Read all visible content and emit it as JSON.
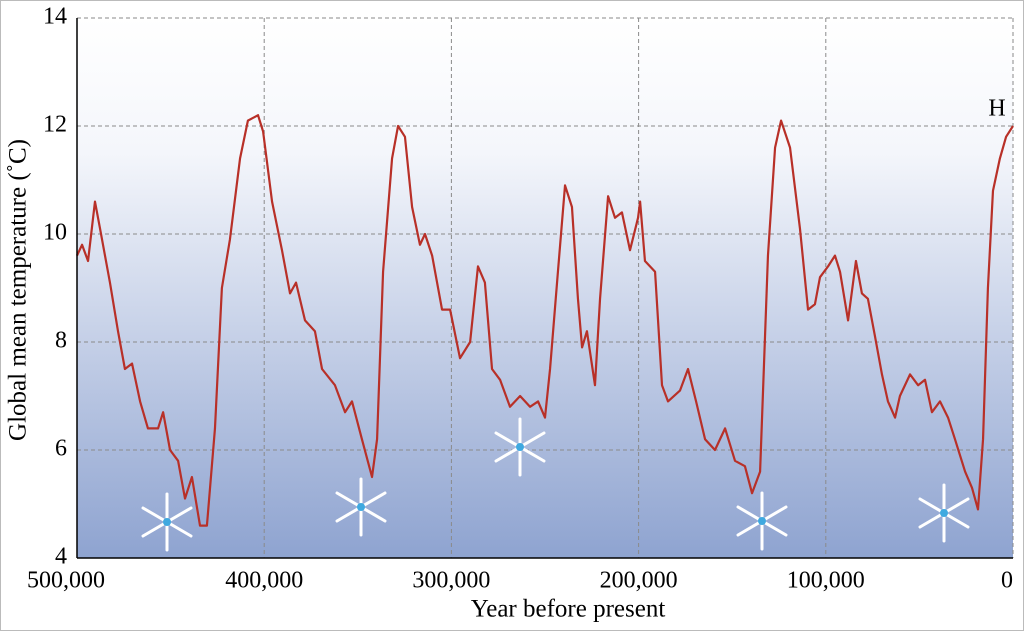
{
  "chart_data": {
    "type": "line",
    "x_label": "Year before present",
    "y_label": "Global mean temperature (˚C)",
    "annotation": "H",
    "color": "#b83028",
    "grid": true,
    "xlim": [
      500000,
      0
    ],
    "ylim": [
      4,
      14
    ],
    "xticks": [
      {
        "value": 500000,
        "label": "500,000"
      },
      {
        "value": 400000,
        "label": "400,000"
      },
      {
        "value": 300000,
        "label": "300,000"
      },
      {
        "value": 200000,
        "label": "200,000"
      },
      {
        "value": 100000,
        "label": "100,000"
      },
      0
    ],
    "yticks": [
      4,
      6,
      8,
      10,
      12,
      14
    ],
    "x": [
      500000,
      497300,
      494100,
      490400,
      487700,
      482400,
      478100,
      474400,
      470600,
      466300,
      462100,
      456700,
      454000,
      450300,
      446000,
      442300,
      438600,
      434300,
      430600,
      426300,
      422600,
      418300,
      412900,
      408700,
      403300,
      400600,
      395800,
      390500,
      386200,
      383000,
      378200,
      372900,
      369100,
      362200,
      356800,
      353100,
      347800,
      342400,
      339700,
      336500,
      331700,
      328500,
      324800,
      321000,
      316800,
      314100,
      310300,
      305000,
      300700,
      295400,
      290000,
      285800,
      282100,
      278300,
      274000,
      268700,
      263300,
      258000,
      253700,
      250000,
      247300,
      243100,
      239300,
      235600,
      232400,
      230200,
      227600,
      223300,
      220600,
      216300,
      212600,
      208900,
      204600,
      200300,
      199200,
      196600,
      191200,
      187500,
      184300,
      177900,
      173600,
      169300,
      164500,
      159200,
      153800,
      148500,
      143200,
      139400,
      135100,
      130900,
      127100,
      123900,
      119100,
      113800,
      109500,
      105800,
      103100,
      98800,
      95100,
      92400,
      88100,
      83900,
      80700,
      77500,
      73700,
      70000,
      66800,
      63000,
      60400,
      55000,
      50700,
      47000,
      43300,
      39000,
      34700,
      31000,
      25600,
      21900,
      18700,
      16000,
      13400,
      10700,
      7000,
      3700,
      0
    ],
    "values": [
      9.6,
      9.8,
      9.5,
      10.6,
      10.1,
      9.1,
      8.2,
      7.5,
      7.6,
      6.9,
      6.4,
      6.4,
      6.7,
      6.0,
      5.8,
      5.1,
      5.5,
      4.6,
      4.6,
      6.4,
      9.0,
      9.9,
      11.4,
      12.1,
      12.2,
      11.9,
      10.6,
      9.7,
      8.9,
      9.1,
      8.4,
      8.2,
      7.5,
      7.2,
      6.7,
      6.9,
      6.2,
      5.5,
      6.2,
      9.3,
      11.4,
      12.0,
      11.8,
      10.5,
      9.8,
      10.0,
      9.6,
      8.6,
      8.6,
      7.7,
      8.0,
      9.4,
      9.1,
      7.5,
      7.3,
      6.8,
      7.0,
      6.8,
      6.9,
      6.6,
      7.5,
      9.3,
      10.9,
      10.5,
      8.8,
      7.9,
      8.2,
      7.2,
      8.8,
      10.7,
      10.3,
      10.4,
      9.7,
      10.3,
      10.6,
      9.5,
      9.3,
      7.2,
      6.9,
      7.1,
      7.5,
      6.9,
      6.2,
      6.0,
      6.4,
      5.8,
      5.7,
      5.2,
      5.6,
      9.6,
      11.6,
      12.1,
      11.6,
      10.1,
      8.6,
      8.7,
      9.2,
      9.4,
      9.6,
      9.3,
      8.4,
      9.5,
      8.9,
      8.8,
      8.1,
      7.4,
      6.9,
      6.6,
      7.0,
      7.4,
      7.2,
      7.3,
      6.7,
      6.9,
      6.6,
      6.2,
      5.6,
      5.3,
      4.9,
      6.2,
      9.0,
      10.8,
      11.4,
      11.8,
      12.0
    ]
  }
}
